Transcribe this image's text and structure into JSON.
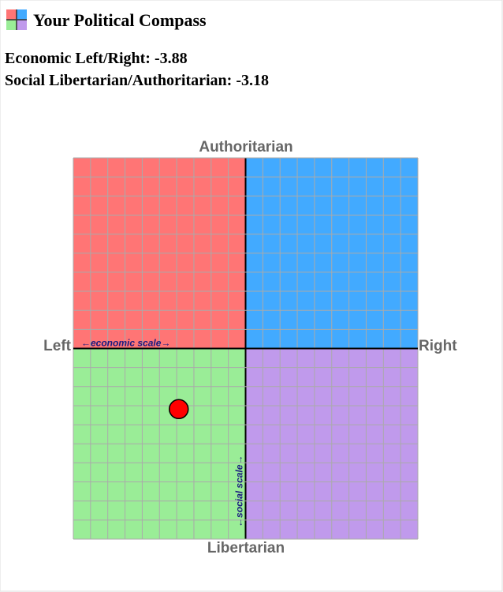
{
  "header": {
    "title": "Your Political Compass"
  },
  "chart_data": {
    "type": "scatter",
    "score_labels": {
      "x": "Economic Left/Right:",
      "y": "Social Libertarian/Authoritarian:"
    },
    "axis_labels": {
      "top": "Authoritarian",
      "bottom": "Libertarian",
      "left": "Left",
      "right": "Right"
    },
    "annotations": {
      "x": "←economic scale→",
      "y": "←social scale→"
    },
    "xlim": [
      -10,
      10
    ],
    "ylim": [
      -10,
      10
    ],
    "xticks": [
      -10,
      -9,
      -8,
      -7,
      -6,
      -5,
      -4,
      -3,
      -2,
      -1,
      0,
      1,
      2,
      3,
      4,
      5,
      6,
      7,
      8,
      9,
      10
    ],
    "yticks": [
      -10,
      -9,
      -8,
      -7,
      -6,
      -5,
      -4,
      -3,
      -2,
      -1,
      0,
      1,
      2,
      3,
      4,
      5,
      6,
      7,
      8,
      9,
      10
    ],
    "grid": true,
    "quadrant_colors": {
      "top_left": "#ff7575",
      "top_right": "#42aaff",
      "bottom_left": "#9aed97",
      "bottom_right": "#c09aec"
    },
    "x": [
      -3.88
    ],
    "values": [
      -3.18
    ],
    "color": "#ff0000"
  }
}
